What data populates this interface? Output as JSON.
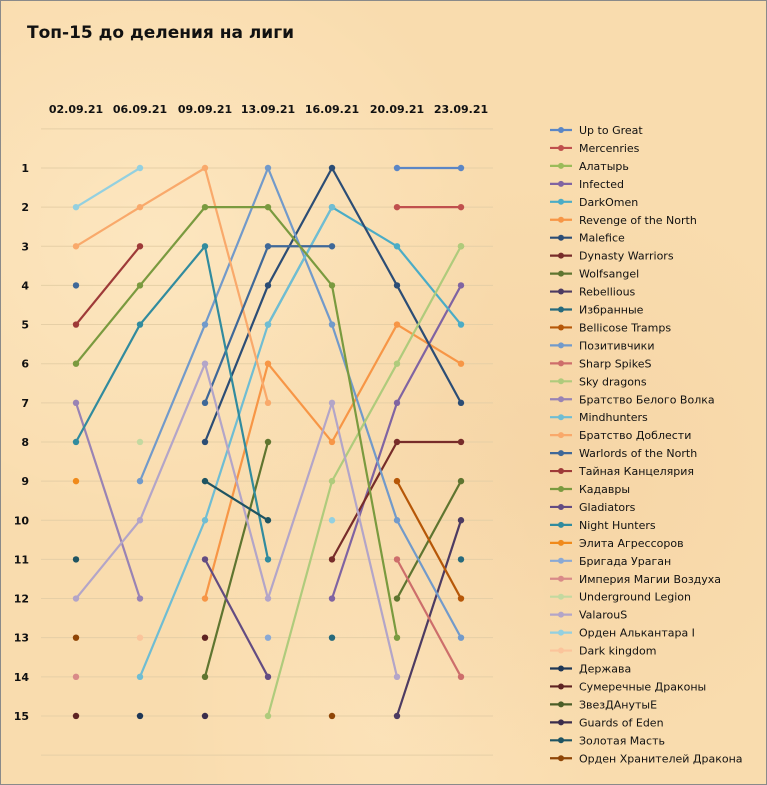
{
  "chart_data": {
    "type": "line",
    "title": "Топ-15 до деления на лиги",
    "x": [
      "02.09.21",
      "06.09.21",
      "09.09.21",
      "13.09.21",
      "16.09.21",
      "20.09.21",
      "23.09.21"
    ],
    "y_ticks": [
      "1",
      "2",
      "3",
      "4",
      "5",
      "6",
      "7",
      "8",
      "9",
      "10",
      "11",
      "12",
      "13",
      "14",
      "15"
    ],
    "ylim": [
      15,
      1
    ],
    "y_inverted": true,
    "grid": true,
    "legend": "right",
    "series": [
      {
        "name": "Up to Great",
        "color": "#5b86c5",
        "values": [
          null,
          null,
          null,
          null,
          null,
          1,
          1
        ]
      },
      {
        "name": "Mercenries",
        "color": "#c0504d",
        "values": [
          null,
          null,
          null,
          null,
          null,
          2,
          2
        ]
      },
      {
        "name": "Алатырь",
        "color": "#9bbb59",
        "values": [
          null,
          null,
          null,
          null,
          null,
          null,
          3
        ]
      },
      {
        "name": "Infected",
        "color": "#8064a2",
        "values": [
          null,
          null,
          null,
          null,
          12,
          7,
          4
        ]
      },
      {
        "name": "DarkOmen",
        "color": "#4bacc6",
        "values": [
          null,
          null,
          null,
          5,
          2,
          3,
          5
        ]
      },
      {
        "name": "Revenge of the North",
        "color": "#f79646",
        "values": [
          null,
          null,
          12,
          6,
          8,
          5,
          6
        ]
      },
      {
        "name": "Malefice",
        "color": "#2c4d75",
        "values": [
          null,
          null,
          8,
          4,
          1,
          4,
          7
        ]
      },
      {
        "name": "Dynasty Warriors",
        "color": "#772c2a",
        "values": [
          null,
          null,
          null,
          null,
          11,
          8,
          8
        ]
      },
      {
        "name": "Wolfsangel",
        "color": "#5f7530",
        "values": [
          null,
          null,
          14,
          8,
          null,
          12,
          9
        ]
      },
      {
        "name": "Rebellious",
        "color": "#4d3b62",
        "values": [
          null,
          null,
          null,
          null,
          null,
          15,
          10
        ]
      },
      {
        "name": "Избранные",
        "color": "#276a7c",
        "values": [
          null,
          null,
          null,
          null,
          13,
          null,
          11
        ]
      },
      {
        "name": "Bellicose Tramps",
        "color": "#b65708",
        "values": [
          null,
          null,
          null,
          null,
          null,
          9,
          12
        ]
      },
      {
        "name": "Позитивчики",
        "color": "#729aca",
        "values": [
          null,
          9,
          5,
          1,
          5,
          10,
          13
        ]
      },
      {
        "name": "Sharp SpikeS",
        "color": "#cd6e6b",
        "values": [
          null,
          null,
          null,
          null,
          null,
          11,
          14
        ]
      },
      {
        "name": "Sky dragons",
        "color": "#afcb7c",
        "values": [
          null,
          null,
          null,
          15,
          9,
          6,
          3
        ]
      },
      {
        "name": "Братство Белого Волка",
        "color": "#9983b4",
        "values": [
          7,
          12,
          null,
          null,
          null,
          null,
          null
        ]
      },
      {
        "name": "Mindhunters",
        "color": "#6fbdd3",
        "values": [
          null,
          14,
          10,
          5,
          2,
          null,
          null
        ]
      },
      {
        "name": "Братство Доблести",
        "color": "#f9a96b",
        "values": [
          3,
          2,
          1,
          7,
          null,
          null,
          null
        ]
      },
      {
        "name": "Warlords of the North",
        "color": "#3f6898",
        "values": [
          4,
          null,
          7,
          3,
          3,
          null,
          null
        ]
      },
      {
        "name": "Тайная Канцелярия",
        "color": "#9e3a38",
        "values": [
          5,
          3,
          null,
          null,
          null,
          null,
          null
        ]
      },
      {
        "name": "Кадавры",
        "color": "#7a9a3f",
        "values": [
          6,
          4,
          2,
          2,
          4,
          13,
          null
        ]
      },
      {
        "name": "Gladiators",
        "color": "#634c82",
        "values": [
          null,
          null,
          11,
          14,
          null,
          null,
          null
        ]
      },
      {
        "name": "Night Hunters",
        "color": "#318b9e",
        "values": [
          8,
          5,
          3,
          11,
          null,
          null,
          null
        ]
      },
      {
        "name": "Элита Агрессоров",
        "color": "#f08a1b",
        "values": [
          9,
          null,
          null,
          null,
          null,
          null,
          null
        ]
      },
      {
        "name": "Бригада Ураган",
        "color": "#8aa9d4",
        "values": [
          null,
          null,
          null,
          13,
          null,
          null,
          null
        ]
      },
      {
        "name": "Империя Магии Воздуха",
        "color": "#d98a88",
        "values": [
          14,
          null,
          null,
          null,
          null,
          null,
          null
        ]
      },
      {
        "name": "Underground Legion",
        "color": "#c3d9a0",
        "values": [
          null,
          8,
          null,
          null,
          null,
          null,
          null
        ]
      },
      {
        "name": "ValarouS",
        "color": "#b3a5c8",
        "values": [
          12,
          10,
          6,
          12,
          7,
          14,
          null
        ]
      },
      {
        "name": "Орден Алькантара I",
        "color": "#93d0e0",
        "values": [
          2,
          1,
          null,
          null,
          10,
          null,
          null
        ]
      },
      {
        "name": "Dark kingdom",
        "color": "#fbc49b",
        "values": [
          null,
          13,
          null,
          null,
          null,
          null,
          null
        ]
      },
      {
        "name": "Держава",
        "color": "#1f3756",
        "values": [
          null,
          15,
          null,
          null,
          null,
          null,
          null
        ]
      },
      {
        "name": "Сумеречные Драконы",
        "color": "#5e2322",
        "values": [
          15,
          null,
          13,
          null,
          null,
          null,
          null
        ]
      },
      {
        "name": "ЗвезДАнутыЕ",
        "color": "#4b5d27",
        "values": [
          null,
          null,
          null,
          null,
          null,
          null,
          null
        ]
      },
      {
        "name": "Guards of Eden",
        "color": "#3b2d4c",
        "values": [
          null,
          null,
          15,
          null,
          null,
          null,
          null
        ]
      },
      {
        "name": "Золотая Масть",
        "color": "#1f5462",
        "values": [
          11,
          null,
          9,
          10,
          null,
          null,
          null
        ]
      },
      {
        "name": "Орден Хранителей Дракона",
        "color": "#8f4506",
        "values": [
          13,
          null,
          null,
          null,
          15,
          null,
          null
        ]
      }
    ]
  }
}
